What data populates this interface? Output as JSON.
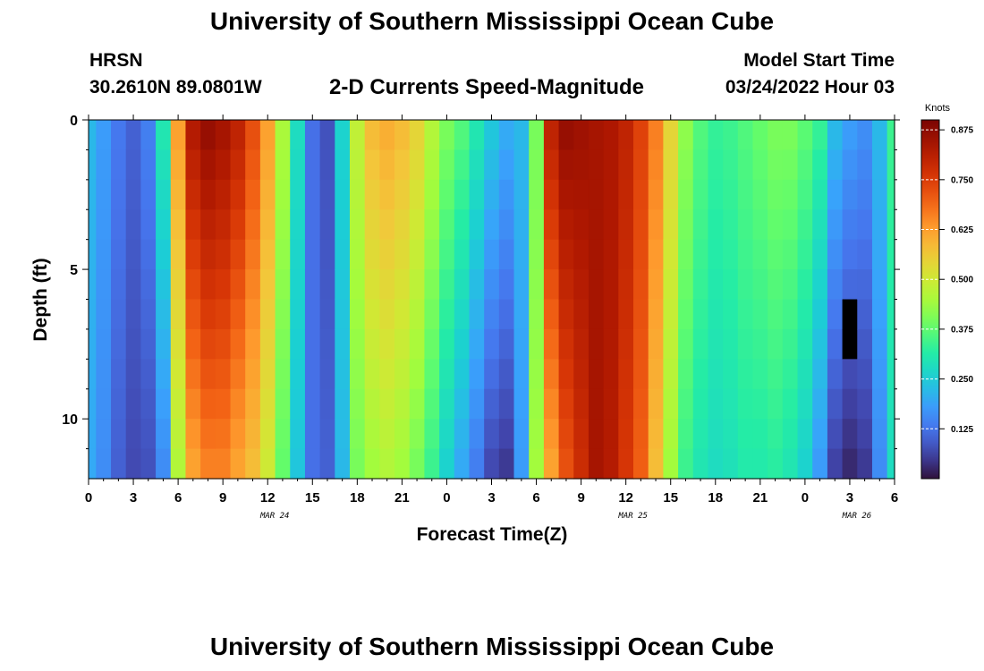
{
  "header": {
    "title": "University of Southern Mississippi Ocean Cube",
    "station": "HRSN",
    "coordinates": "30.2610N  89.0801W",
    "subtitle": "2-D Currents Speed-Magnitude",
    "model_start_label": "Model Start Time",
    "model_start_value": "03/24/2022 Hour 03"
  },
  "footer": {
    "title": "University of Southern Mississippi Ocean Cube"
  },
  "chart_data": {
    "type": "heatmap",
    "title": "2-D Currents Speed-Magnitude",
    "xlabel": "Forecast Time(Z)",
    "ylabel": "Depth (ft)",
    "xlim": [
      0,
      54
    ],
    "ylim": [
      0,
      12
    ],
    "x_ticks": [
      0,
      3,
      6,
      9,
      12,
      15,
      18,
      21,
      24,
      27,
      30,
      33,
      36,
      39,
      42,
      45,
      48,
      51,
      54
    ],
    "x_tick_labels": [
      "0",
      "3",
      "6",
      "9",
      "12",
      "15",
      "18",
      "21",
      "0",
      "3",
      "6",
      "9",
      "12",
      "15",
      "18",
      "21",
      "0",
      "3",
      "6"
    ],
    "y_ticks": [
      0,
      5,
      10
    ],
    "y_tick_labels": [
      "0",
      "5",
      "10"
    ],
    "date_labels": [
      {
        "x": 12,
        "label": "MAR 24"
      },
      {
        "x": 36,
        "label": "MAR 25"
      },
      {
        "x": 51,
        "label": "MAR 26"
      }
    ],
    "colorbar": {
      "label": "Knots",
      "min": 0.0,
      "max": 0.9,
      "ticks": [
        0.125,
        0.25,
        0.375,
        0.5,
        0.625,
        0.75,
        0.875
      ],
      "tick_labels": [
        "0.125",
        "0.250",
        "0.375",
        "0.500",
        "0.625",
        "0.750",
        "0.875"
      ]
    },
    "time_step_hours": 1,
    "depth_levels": 12,
    "surface_speed_knots": [
      0.22,
      0.18,
      0.13,
      0.1,
      0.14,
      0.3,
      0.62,
      0.82,
      0.86,
      0.84,
      0.8,
      0.72,
      0.62,
      0.45,
      0.28,
      0.12,
      0.08,
      0.26,
      0.48,
      0.58,
      0.6,
      0.58,
      0.54,
      0.46,
      0.4,
      0.36,
      0.3,
      0.24,
      0.2,
      0.22,
      0.4,
      0.8,
      0.86,
      0.85,
      0.84,
      0.83,
      0.8,
      0.74,
      0.66,
      0.54,
      0.42,
      0.36,
      0.33,
      0.34,
      0.36,
      0.38,
      0.4,
      0.4,
      0.37,
      0.33,
      0.22,
      0.18,
      0.16,
      0.22,
      0.34
    ],
    "bottom_speed_knots": [
      0.2,
      0.16,
      0.1,
      0.07,
      0.08,
      0.16,
      0.46,
      0.62,
      0.66,
      0.66,
      0.62,
      0.58,
      0.5,
      0.38,
      0.24,
      0.12,
      0.1,
      0.22,
      0.4,
      0.44,
      0.46,
      0.44,
      0.4,
      0.34,
      0.26,
      0.2,
      0.14,
      0.07,
      0.05,
      0.18,
      0.44,
      0.62,
      0.72,
      0.78,
      0.84,
      0.82,
      0.76,
      0.7,
      0.58,
      0.44,
      0.34,
      0.3,
      0.28,
      0.29,
      0.31,
      0.31,
      0.32,
      0.3,
      0.26,
      0.18,
      0.06,
      0.03,
      0.05,
      0.16,
      0.28
    ],
    "missing_cells": [
      {
        "time_hour": 51,
        "depths_ft": [
          7,
          8
        ]
      }
    ]
  },
  "plot": {
    "xlabel": "Forecast Time(Z)",
    "ylabel": "Depth (ft)",
    "colorbar_label": "Knots"
  }
}
